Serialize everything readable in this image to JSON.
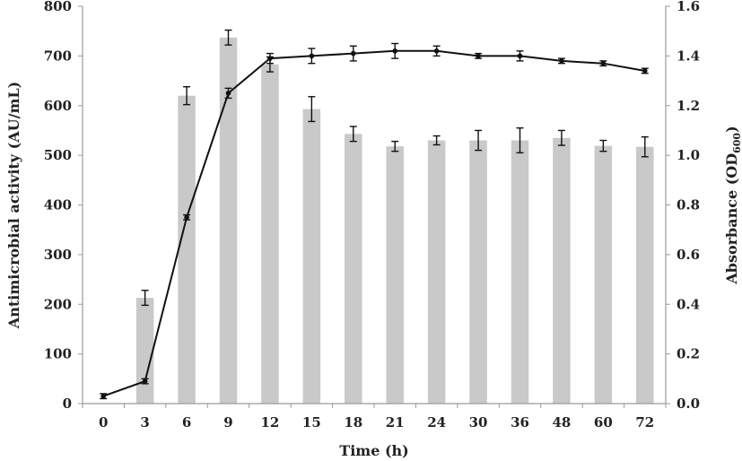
{
  "chart_data": {
    "type": "bar+line",
    "categories": [
      "0",
      "3",
      "6",
      "9",
      "12",
      "15",
      "18",
      "21",
      "24",
      "30",
      "36",
      "48",
      "60",
      "72"
    ],
    "xlabel": "Time (h)",
    "ylabel_left": "Antimicrobial activity (AU/mL)",
    "ylabel_right_main": "Absorbance (OD",
    "ylabel_right_sub": "600",
    "ylabel_right_close": ")",
    "left_ylim": [
      0,
      800
    ],
    "left_yticks": [
      "0",
      "100",
      "200",
      "300",
      "400",
      "500",
      "600",
      "700",
      "800"
    ],
    "right_ylim": [
      0,
      1.6
    ],
    "right_yticks": [
      "0.0",
      "0.2",
      "0.4",
      "0.6",
      "0.8",
      "1.0",
      "1.2",
      "1.4",
      "1.6"
    ],
    "bar_series": {
      "axis": "left",
      "values": [
        0,
        213,
        620,
        737,
        683,
        593,
        543,
        518,
        530,
        530,
        530,
        535,
        519,
        517
      ],
      "errors": [
        0,
        15,
        18,
        15,
        15,
        25,
        15,
        10,
        9,
        20,
        25,
        15,
        11,
        20
      ],
      "color": "#c9c9c9"
    },
    "line_series": {
      "axis": "right",
      "values": [
        0.03,
        0.09,
        0.75,
        1.25,
        1.39,
        1.4,
        1.41,
        1.42,
        1.42,
        1.4,
        1.4,
        1.38,
        1.37,
        1.34
      ],
      "errors": [
        0.01,
        0.01,
        0.01,
        0.02,
        0.02,
        0.03,
        0.03,
        0.03,
        0.02,
        0.01,
        0.02,
        0.01,
        0.01,
        0.01
      ],
      "color": "#111111"
    },
    "grid": false,
    "legend": "none"
  }
}
